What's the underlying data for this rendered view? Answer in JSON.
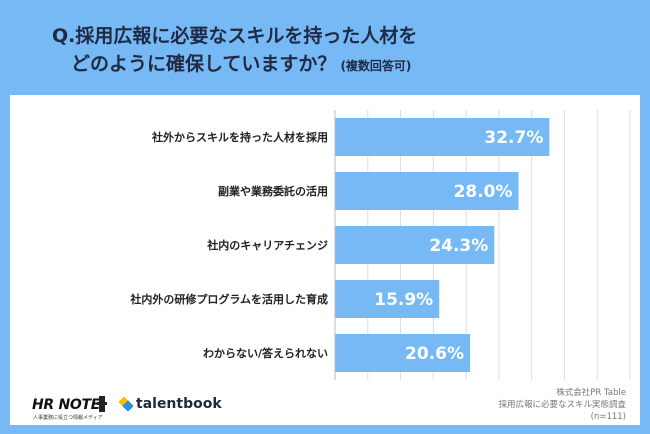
{
  "question": {
    "line1": "Q.採用広報に必要なスキルを持った人材を",
    "line2": "どのように確保していますか？",
    "note": "(複数回答可)"
  },
  "chart_data": {
    "type": "bar",
    "orientation": "horizontal",
    "categories": [
      "社外からスキルを持った人材を採用",
      "副業や業務委託の活用",
      "社内のキャリアチェンジ",
      "社内外の研修プログラムを活用した育成",
      "わからない/答えられない"
    ],
    "values": [
      32.7,
      28.0,
      24.3,
      15.9,
      20.6
    ],
    "value_labels": [
      "32.7%",
      "28.0%",
      "24.3%",
      "15.9%",
      "20.6%"
    ],
    "xlim": [
      0,
      45
    ],
    "grid": true,
    "colors": {
      "bar": "#76b9f5",
      "background": "#76b9f5",
      "grid": "#dddddd"
    }
  },
  "logos": {
    "hrnote": "HR NOTE",
    "hrnote_sub": "人事業務に役立つ情報メディア",
    "talentbook": "talentbook"
  },
  "credit": {
    "line1": "株式会社PR Table",
    "line2": "採用広報に必要なスキル実態調査",
    "line3": "(n=111)"
  }
}
